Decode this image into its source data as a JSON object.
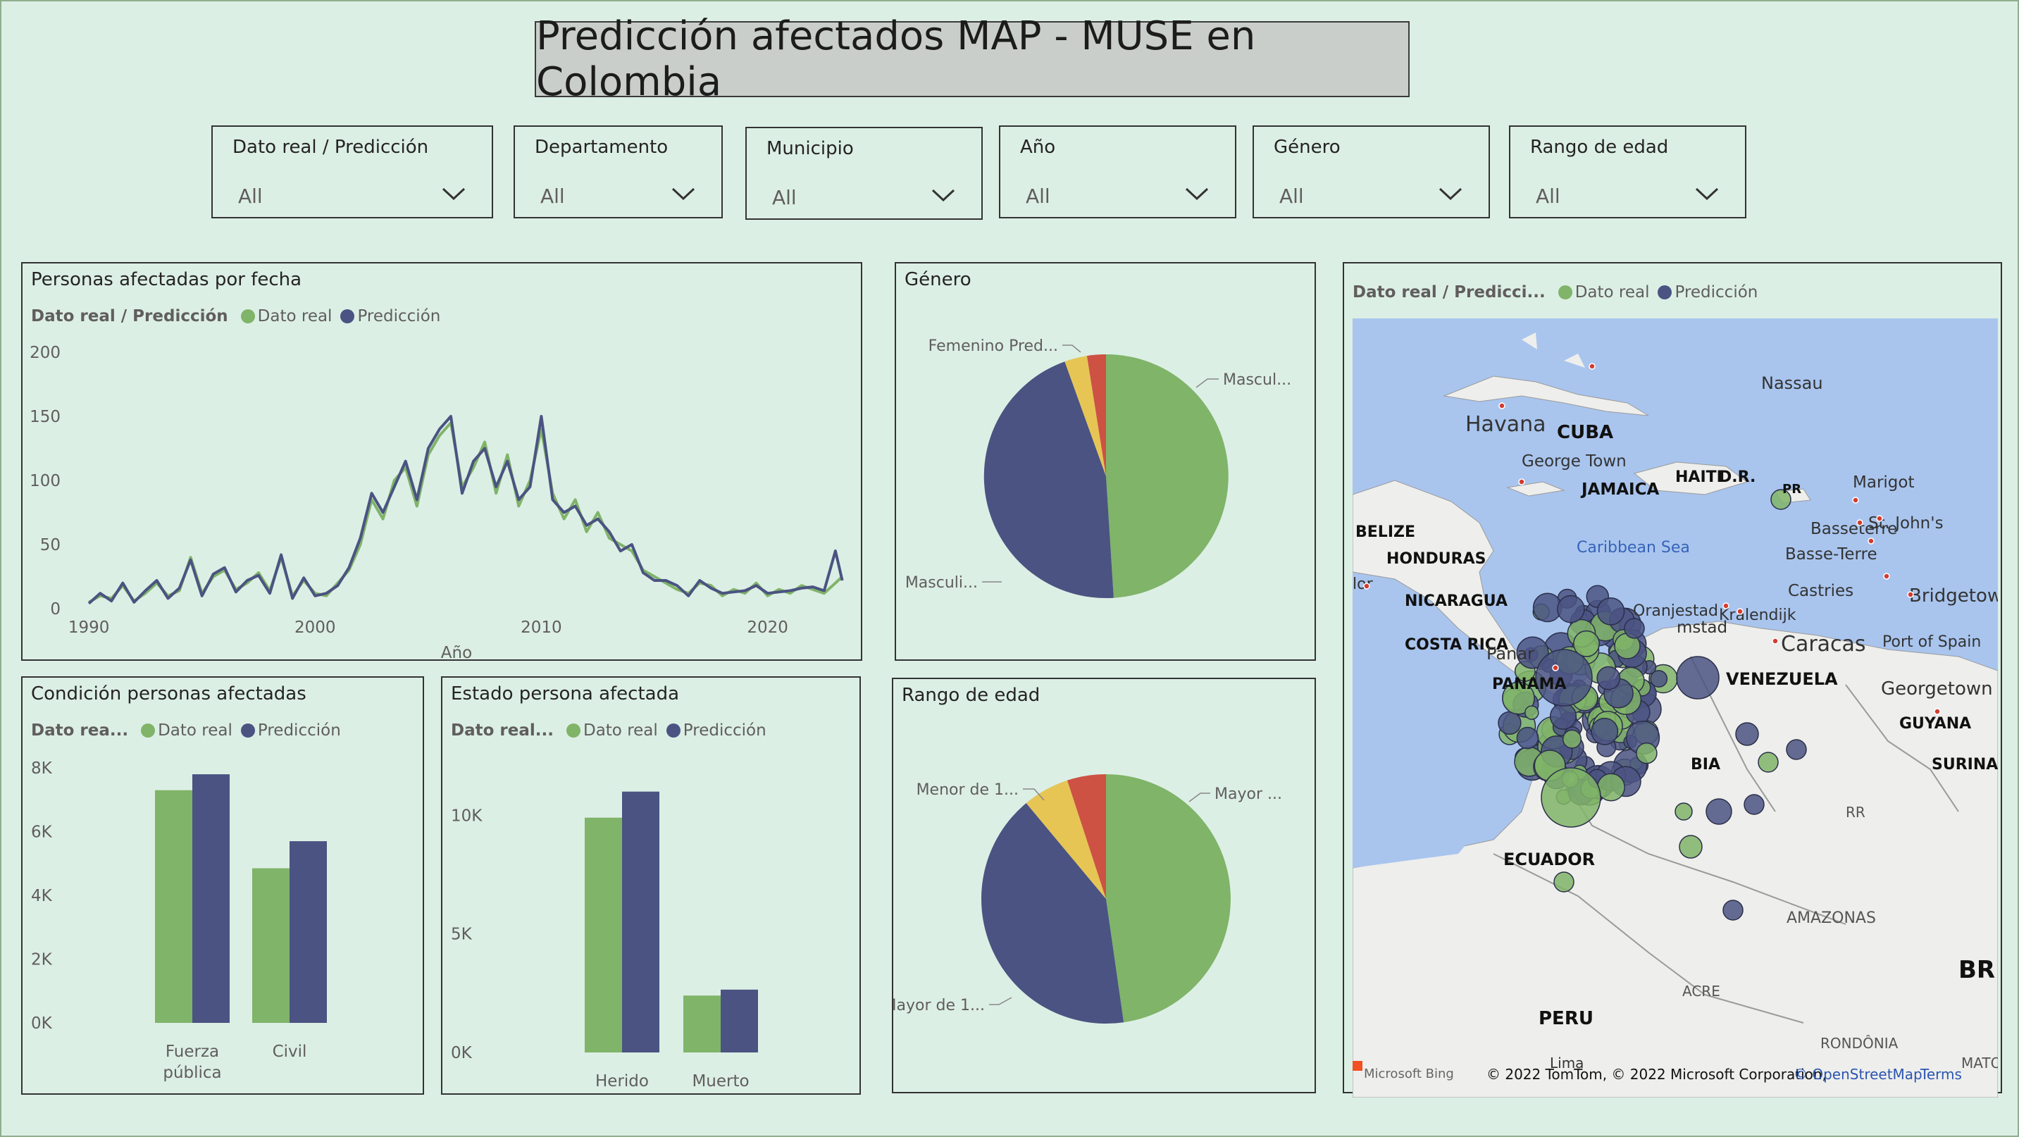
{
  "title": "Predicción afectados MAP - MUSE en Colombia",
  "colors": {
    "real": "#80b469",
    "pred": "#4b5382",
    "accent1": "#e6c555",
    "accent2": "#cd5243",
    "water": "#a9c5ee",
    "land": "#eeeeec"
  },
  "slicers": [
    {
      "label": "Dato real / Predicción",
      "value": "All"
    },
    {
      "label": "Departamento",
      "value": "All"
    },
    {
      "label": "Municipio",
      "value": "All"
    },
    {
      "label": "Año",
      "value": "All"
    },
    {
      "label": "Género",
      "value": "All"
    },
    {
      "label": "Rango de edad",
      "value": "All"
    }
  ],
  "legend": {
    "field_full": "Dato real / Predicción",
    "field_short1": "Dato rea...",
    "field_short2": "Dato real...",
    "field_map": "Dato real / Predicci...",
    "real": "Dato real",
    "pred": "Predicción"
  },
  "chart_data": [
    {
      "id": "line",
      "type": "line",
      "title": "Personas afectadas por fecha",
      "xlabel": "Año",
      "ylabel": "",
      "xlim": [
        1989,
        2023.5
      ],
      "ylim": [
        0,
        200
      ],
      "xticks": [
        1990,
        2000,
        2010,
        2020
      ],
      "yticks": [
        0,
        50,
        100,
        150,
        200
      ],
      "series": [
        {
          "name": "Dato real",
          "x": [
            1990,
            1990.5,
            1991,
            1991.5,
            1992,
            1992.5,
            1993,
            1993.5,
            1994,
            1994.5,
            1995,
            1995.5,
            1996,
            1996.5,
            1997,
            1997.5,
            1998,
            1998.5,
            1999,
            1999.5,
            2000,
            2000.5,
            2001,
            2001.5,
            2002,
            2002.5,
            2003,
            2003.5,
            2004,
            2004.5,
            2005,
            2005.5,
            2006,
            2006.5,
            2007,
            2007.5,
            2008,
            2008.5,
            2009,
            2009.5,
            2010,
            2010.5,
            2011,
            2011.5,
            2012,
            2012.5,
            2013,
            2013.5,
            2014,
            2014.5,
            2015,
            2015.5,
            2016,
            2016.5,
            2017,
            2017.5,
            2018,
            2018.5,
            2019,
            2019.5,
            2020,
            2020.5,
            2021,
            2021.5,
            2022,
            2022.5,
            2023,
            2023.3
          ],
          "y": [
            5,
            10,
            8,
            18,
            6,
            12,
            20,
            10,
            14,
            40,
            12,
            25,
            30,
            15,
            20,
            28,
            14,
            40,
            10,
            22,
            12,
            10,
            20,
            30,
            50,
            85,
            70,
            100,
            110,
            80,
            120,
            135,
            145,
            95,
            110,
            130,
            90,
            120,
            80,
            100,
            140,
            90,
            70,
            85,
            60,
            75,
            55,
            50,
            45,
            30,
            25,
            20,
            15,
            12,
            20,
            18,
            10,
            15,
            12,
            20,
            10,
            15,
            12,
            18,
            15,
            12,
            20,
            25
          ]
        },
        {
          "name": "Predicción",
          "x": [
            1990,
            1990.5,
            1991,
            1991.5,
            1992,
            1992.5,
            1993,
            1993.5,
            1994,
            1994.5,
            1995,
            1995.5,
            1996,
            1996.5,
            1997,
            1997.5,
            1998,
            1998.5,
            1999,
            1999.5,
            2000,
            2000.5,
            2001,
            2001.5,
            2002,
            2002.5,
            2003,
            2003.5,
            2004,
            2004.5,
            2005,
            2005.5,
            2006,
            2006.5,
            2007,
            2007.5,
            2008,
            2008.5,
            2009,
            2009.5,
            2010,
            2010.5,
            2011,
            2011.5,
            2012,
            2012.5,
            2013,
            2013.5,
            2014,
            2014.5,
            2015,
            2015.5,
            2016,
            2016.5,
            2017,
            2017.5,
            2018,
            2018.5,
            2019,
            2019.5,
            2020,
            2020.5,
            2021,
            2021.5,
            2022,
            2022.5,
            2023,
            2023.3
          ],
          "y": [
            4,
            12,
            6,
            20,
            5,
            14,
            22,
            8,
            16,
            38,
            10,
            27,
            32,
            13,
            22,
            26,
            12,
            42,
            8,
            24,
            10,
            12,
            18,
            32,
            55,
            90,
            75,
            95,
            115,
            85,
            125,
            140,
            150,
            90,
            115,
            125,
            95,
            115,
            85,
            95,
            150,
            85,
            75,
            80,
            65,
            70,
            60,
            45,
            50,
            28,
            22,
            22,
            18,
            10,
            22,
            16,
            12,
            13,
            14,
            18,
            12,
            13,
            14,
            16,
            17,
            14,
            45,
            22
          ]
        }
      ]
    },
    {
      "id": "gender",
      "type": "pie",
      "title": "Género",
      "labels": [
        "Masculino Dato real",
        "Masculino Predicción",
        "Femenino Predicción",
        "Femenino Dato real"
      ],
      "display_labels": [
        "Mascul...",
        "Masculi...",
        "Femenino Pred...",
        ""
      ],
      "values": [
        49,
        45.5,
        3,
        2.5
      ]
    },
    {
      "id": "age",
      "type": "pie",
      "title": "Rango de edad",
      "labels": [
        "Mayor de 18 Dato real",
        "Mayor de 18 Predicción",
        "Menor de 18 Predicción",
        "Menor de 18 Dato real"
      ],
      "display_labels": [
        "Mayor ...",
        "Mayor de 1...",
        "Menor de 1...",
        ""
      ],
      "values": [
        47.5,
        41,
        6,
        5
      ]
    },
    {
      "id": "cond",
      "type": "bar",
      "title": "Condición personas afectadas",
      "categories": [
        "Fuerza pública",
        "Civil"
      ],
      "category_lines": [
        [
          "Fuerza",
          "pública"
        ],
        [
          "Civil"
        ]
      ],
      "ylim": [
        0,
        8000
      ],
      "yticks": [
        0,
        2000,
        4000,
        6000,
        8000
      ],
      "ytick_labels": [
        "0K",
        "2K",
        "4K",
        "6K",
        "8K"
      ],
      "series": [
        {
          "name": "Dato real",
          "values": [
            7300,
            4850
          ]
        },
        {
          "name": "Predicción",
          "values": [
            7800,
            5700
          ]
        }
      ]
    },
    {
      "id": "estado",
      "type": "bar",
      "title": "Estado persona afectada",
      "categories": [
        "Herido",
        "Muerto"
      ],
      "category_lines": [
        [
          "Herido"
        ],
        [
          "Muerto"
        ]
      ],
      "ylim": [
        0,
        12000
      ],
      "yticks": [
        0,
        5000,
        10000
      ],
      "ytick_labels": [
        "0K",
        "5K",
        "10K"
      ],
      "series": [
        {
          "name": "Dato real",
          "values": [
            9900,
            2400
          ]
        },
        {
          "name": "Predicción",
          "values": [
            11000,
            2650
          ]
        }
      ]
    }
  ],
  "map": {
    "labels": [
      "Nassau",
      "Havana",
      "CUBA",
      "George Town",
      "JAMAICA",
      "HAITI",
      "D.R.",
      "PR",
      "Marigot",
      "Basseterre",
      "St. John's",
      "Basse-Terre",
      "BELIZE",
      "HONDURAS",
      "Caribbean Sea",
      "NICARAGUA",
      "Oranjestad",
      "Kralendijk",
      "Castries",
      "Bridgetow",
      "mstad",
      "Caracas",
      "Port of Spain",
      "COSTA RICA",
      "Panar",
      "VENEZUELA",
      "Georgetown",
      "PANAMA",
      "GUYANA",
      "SURINA",
      "BIA",
      "RR",
      "ECUADOR",
      "AMAZONAS",
      "BR",
      "ACRE",
      "PERU",
      "RONDÔNIA",
      "MATO GR",
      "lor",
      "Lima"
    ],
    "brand": "Microsoft Bing",
    "attribution": "© 2022 TomTom, © 2022 Microsoft Corporation,",
    "osm": "© OpenStreetMap",
    "terms": "Terms"
  }
}
